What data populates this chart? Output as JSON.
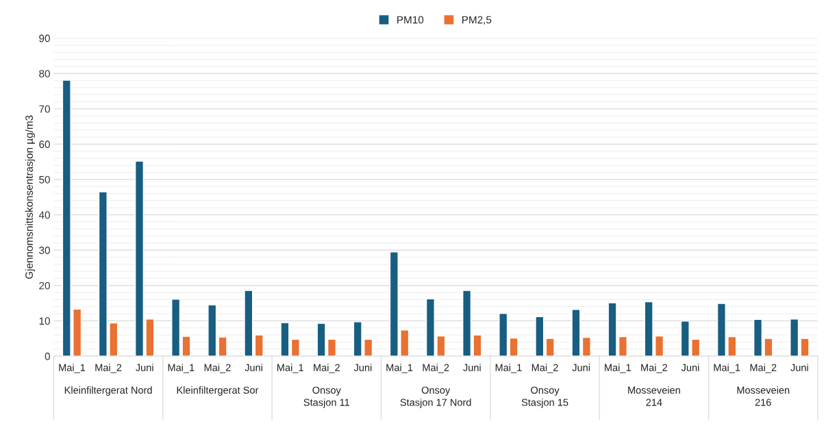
{
  "chart_data": {
    "type": "bar",
    "ylabel": "Gjennomsnittskonsentrasjon µg/m3",
    "categories": [
      "Mai_1",
      "Mai_2",
      "Juni",
      "Mai_1",
      "Mai_2",
      "Juni",
      "Mai_1",
      "Mai_2",
      "Juni",
      "Mai_1",
      "Mai_2",
      "Juni",
      "Mai_1",
      "Mai_2",
      "Juni",
      "Mai_1",
      "Mai_2",
      "Juni",
      "Mai_1",
      "Mai_2",
      "Juni"
    ],
    "series": [
      {
        "name": "PM10",
        "color": "#175e82",
        "values": [
          78.1,
          46.5,
          55.2,
          16.1,
          14.5,
          18.6,
          9.5,
          9.3,
          9.7,
          29.5,
          16.2,
          18.6,
          12.1,
          11.2,
          13.2,
          15.1,
          15.4,
          9.9,
          14.9,
          10.4,
          10.5
        ]
      },
      {
        "name": "PM2,5",
        "color": "#e97132",
        "values": [
          13.3,
          9.4,
          10.5,
          5.6,
          5.4,
          6.0,
          4.8,
          4.8,
          4.8,
          7.4,
          5.7,
          6.0,
          5.1,
          5.0,
          5.3,
          5.5,
          5.7,
          4.8,
          5.5,
          5.0,
          5.0
        ]
      }
    ],
    "annotations": [
      "Kleinfiltergerat Nord",
      "Kleinfiltergerat Sor",
      "Onsoy\nStasjon 11",
      "Onsoy\nStasjon 17 Nord",
      "Onsoy\nStasjon 15",
      "Mosseveien\n214",
      "Mosseveien\n216"
    ],
    "ylim": [
      0,
      90
    ],
    "yticks": [
      0,
      {
        "value": 2,
        "label": null
      },
      {
        "value": 4,
        "label": null
      },
      {
        "value": 6,
        "label": null
      },
      {
        "value": 8,
        "label": null
      },
      10,
      {
        "value": 12,
        "label": null
      },
      {
        "value": 14,
        "label": null
      },
      {
        "value": 16,
        "label": null
      },
      {
        "value": 18,
        "label": null
      },
      20,
      {
        "value": 22,
        "label": null
      },
      {
        "value": 24,
        "label": null
      },
      {
        "value": 26,
        "label": null
      },
      {
        "value": 28,
        "label": null
      },
      30,
      {
        "value": 32,
        "label": null
      },
      {
        "value": 34,
        "label": null
      },
      {
        "value": 36,
        "label": null
      },
      {
        "value": 38,
        "label": null
      },
      40,
      {
        "value": 42,
        "label": null
      },
      {
        "value": 44,
        "label": null
      },
      {
        "value": 46,
        "label": null
      },
      {
        "value": 48,
        "label": null
      },
      50,
      {
        "value": 52,
        "label": null
      },
      {
        "value": 54,
        "label": null
      },
      {
        "value": 56,
        "label": null
      },
      {
        "value": 58,
        "label": null
      },
      60,
      {
        "value": 62,
        "label": null
      },
      {
        "value": 64,
        "label": null
      },
      {
        "value": 66,
        "label": null
      },
      {
        "value": 68,
        "label": null
      },
      70,
      {
        "value": 72,
        "label": null
      },
      {
        "value": 74,
        "label": null
      },
      {
        "value": 76,
        "label": null
      },
      {
        "value": 78,
        "label": null
      },
      80,
      {
        "value": 82,
        "label": null
      },
      {
        "value": 84,
        "label": null
      },
      {
        "value": 86,
        "label": null
      },
      {
        "value": 88,
        "label": null
      },
      90
    ],
    "grid": "y",
    "legend": "top"
  }
}
